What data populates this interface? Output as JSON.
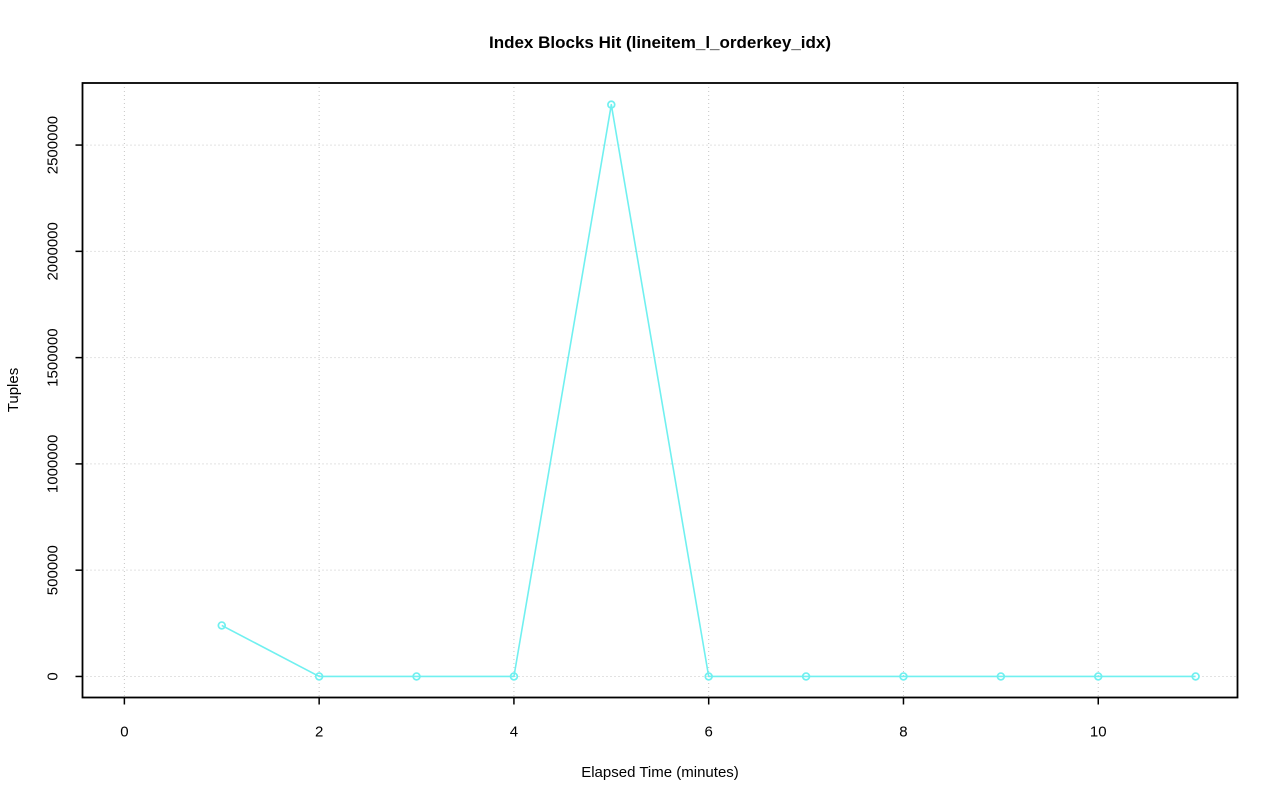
{
  "chart_data": {
    "type": "line",
    "title": "Index Blocks Hit (lineitem_l_orderkey_idx)",
    "xlabel": "Elapsed Time (minutes)",
    "ylabel": "Tuples",
    "x": [
      1,
      2,
      3,
      4,
      5,
      6,
      7,
      8,
      9,
      10,
      11
    ],
    "y": [
      240000,
      0,
      0,
      0,
      2690000,
      0,
      0,
      0,
      0,
      0,
      0
    ],
    "xticks": [
      0,
      2,
      4,
      6,
      8,
      10
    ],
    "yticks": [
      0,
      500000,
      1000000,
      1500000,
      2000000,
      2500000
    ],
    "xtick_labels": [
      "0",
      "2",
      "4",
      "6",
      "8",
      "10"
    ],
    "ytick_labels": [
      "0",
      "500000",
      "1000000",
      "1500000",
      "2000000",
      "2500000"
    ],
    "xlim": [
      -0.43,
      11.43
    ],
    "ylim": [
      -99000,
      2792000
    ],
    "grid": true,
    "grid_style": "dotted",
    "legend": "none",
    "marker": "open-circle",
    "colors": {
      "line": "#70F0F0",
      "marker": "#70F0F0",
      "grid": "#C6C6C6",
      "box": "#000000",
      "background": "#FFFFFF"
    }
  }
}
